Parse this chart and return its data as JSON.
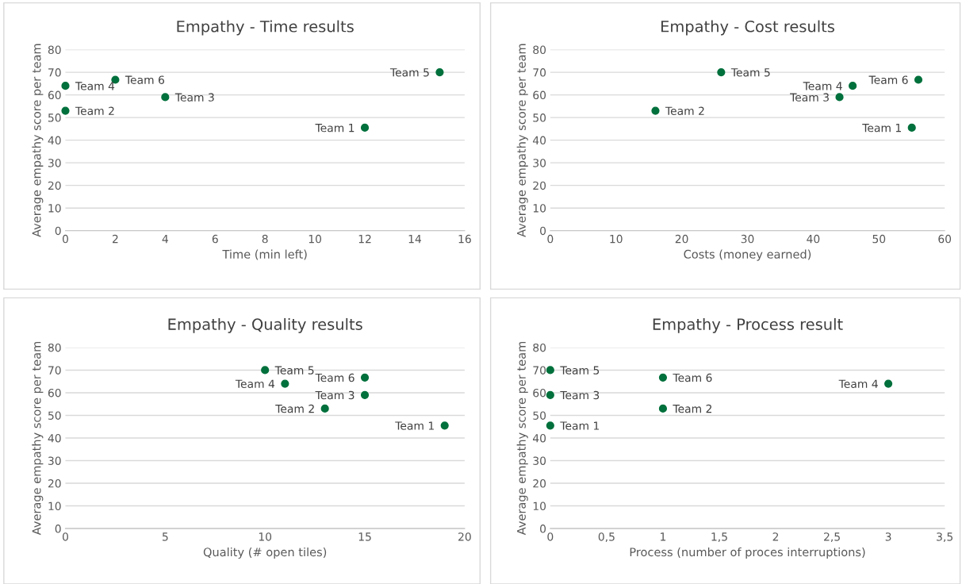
{
  "chart_data": [
    {
      "type": "scatter",
      "title": "Empathy - Time results",
      "xlabel": "Time (min left)",
      "ylabel": "Average empathy score per team",
      "x": [
        12,
        0,
        4,
        0,
        15,
        2
      ],
      "values": [
        45.5,
        53,
        59,
        64,
        70,
        66.7
      ],
      "color": "#00703c",
      "marker": "circle",
      "xlim": [
        0,
        16
      ],
      "xticks": [
        0,
        2,
        4,
        6,
        8,
        10,
        12,
        14,
        16
      ],
      "ylim": [
        0,
        80
      ],
      "yticks": [
        0,
        10,
        20,
        30,
        40,
        50,
        60,
        70,
        80
      ],
      "grid": "y",
      "annotations": [
        {
          "text": "Team 1",
          "x": 12,
          "y": 45.5
        },
        {
          "text": "Team 2",
          "x": 0,
          "y": 53
        },
        {
          "text": "Team 3",
          "x": 4,
          "y": 59
        },
        {
          "text": "Team 4",
          "x": 0,
          "y": 64
        },
        {
          "text": "Team 5",
          "x": 15,
          "y": 70
        },
        {
          "text": "Team 6",
          "x": 2,
          "y": 66.7
        }
      ]
    },
    {
      "type": "scatter",
      "title": "Empathy - Cost results",
      "xlabel": "Costs (money earned)",
      "ylabel": "Average empathy score per team",
      "x": [
        55,
        16,
        44,
        46,
        26,
        56
      ],
      "values": [
        45.5,
        53,
        59,
        64,
        70,
        66.7
      ],
      "color": "#00703c",
      "marker": "circle",
      "xlim": [
        0,
        60
      ],
      "xticks": [
        0,
        10,
        20,
        30,
        40,
        50,
        60
      ],
      "ylim": [
        0,
        80
      ],
      "yticks": [
        0,
        10,
        20,
        30,
        40,
        50,
        60,
        70,
        80
      ],
      "grid": "y",
      "annotations": [
        {
          "text": "Team 1",
          "x": 55,
          "y": 45.5
        },
        {
          "text": "Team 2",
          "x": 16,
          "y": 53
        },
        {
          "text": "Team 3",
          "x": 44,
          "y": 59
        },
        {
          "text": "Team 4",
          "x": 46,
          "y": 64
        },
        {
          "text": "Team 5",
          "x": 26,
          "y": 70
        },
        {
          "text": "Team 6",
          "x": 56,
          "y": 66.7
        }
      ]
    },
    {
      "type": "scatter",
      "title": "Empathy - Quality results",
      "xlabel": "Quality (# open tiles)",
      "ylabel": "Average empathy score per team",
      "x": [
        19,
        13,
        15,
        11,
        10,
        15
      ],
      "values": [
        45.5,
        53,
        59,
        64,
        70,
        66.7
      ],
      "color": "#00703c",
      "marker": "circle",
      "xlim": [
        0,
        20
      ],
      "xticks": [
        0,
        5,
        10,
        15,
        20
      ],
      "ylim": [
        0,
        80
      ],
      "yticks": [
        0,
        10,
        20,
        30,
        40,
        50,
        60,
        70,
        80
      ],
      "grid": "y",
      "annotations": [
        {
          "text": "Team 1",
          "x": 19,
          "y": 45.5
        },
        {
          "text": "Team 2",
          "x": 13,
          "y": 53
        },
        {
          "text": "Team 3",
          "x": 15,
          "y": 59
        },
        {
          "text": "Team 4",
          "x": 11,
          "y": 64
        },
        {
          "text": "Team 5",
          "x": 10,
          "y": 70
        },
        {
          "text": "Team 6",
          "x": 15,
          "y": 66.7
        }
      ]
    },
    {
      "type": "scatter",
      "title": "Empathy - Process result",
      "xlabel": "Process (number of proces interruptions)",
      "ylabel": "Average empathy score per team",
      "x": [
        0,
        1,
        0,
        3,
        0,
        1
      ],
      "values": [
        45.5,
        53,
        59,
        64,
        70,
        66.7
      ],
      "color": "#00703c",
      "marker": "circle",
      "xlim": [
        0,
        3.5
      ],
      "xticks": [
        0,
        {
          "value": 0.5,
          "label": "0,5"
        },
        1,
        {
          "value": 1.5,
          "label": "1,5"
        },
        2,
        {
          "value": 2.5,
          "label": "2,5"
        },
        3,
        {
          "value": 3.5,
          "label": "3,5"
        }
      ],
      "ylim": [
        0,
        80
      ],
      "yticks": [
        0,
        10,
        20,
        30,
        40,
        50,
        60,
        70,
        80
      ],
      "grid": "y",
      "annotations": [
        {
          "text": "Team 1",
          "x": 0,
          "y": 45.5
        },
        {
          "text": "Team 2",
          "x": 1,
          "y": 53
        },
        {
          "text": "Team 3",
          "x": 0,
          "y": 59
        },
        {
          "text": "Team 4",
          "x": 3,
          "y": 64
        },
        {
          "text": "Team 5",
          "x": 0,
          "y": 70
        },
        {
          "text": "Team 6",
          "x": 1,
          "y": 66.7
        }
      ]
    }
  ]
}
